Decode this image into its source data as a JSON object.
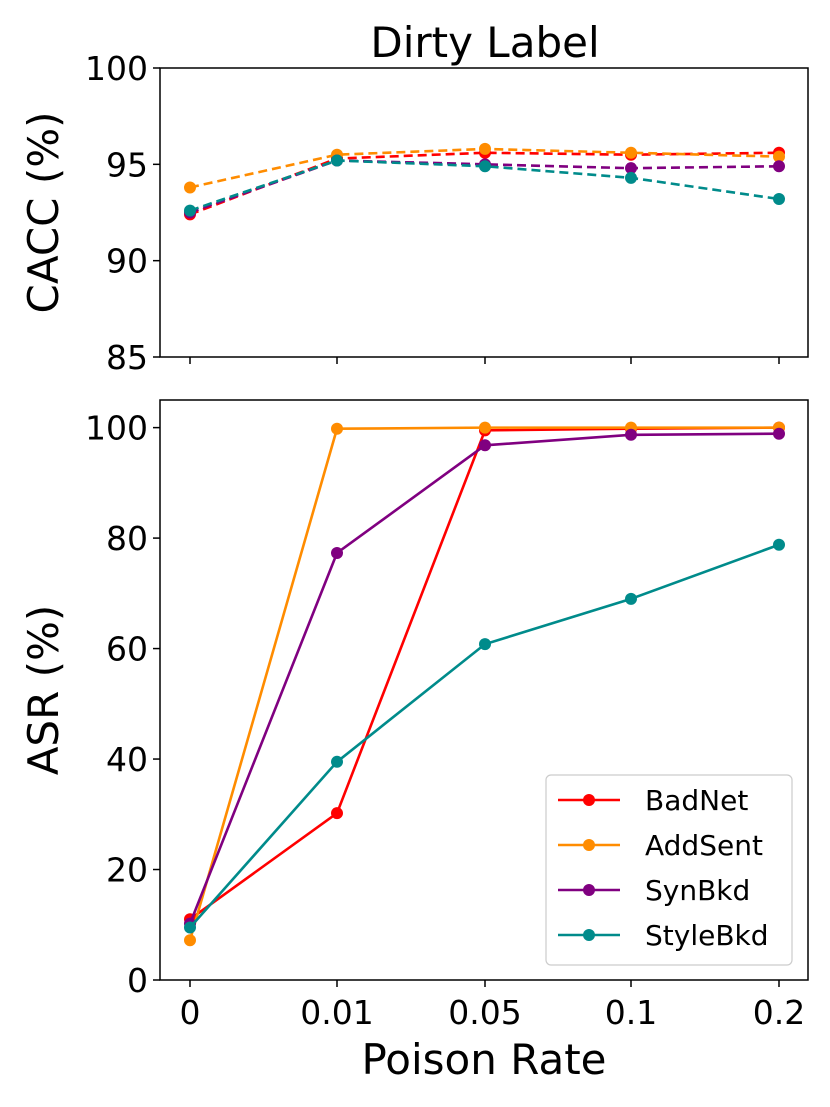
{
  "figure_title": "Dirty Label",
  "colors": {
    "BadNet": "#ff0000",
    "AddSent": "#ff8c00",
    "SynBkd": "#800080",
    "StyleBkd": "#008b8b"
  },
  "chart_data": [
    {
      "type": "line",
      "title": "Dirty Label",
      "xlabel": "",
      "ylabel": "CACC (%)",
      "categories": [
        "0",
        "0.01",
        "0.05",
        "0.1",
        "0.2"
      ],
      "ylim": [
        85,
        100
      ],
      "yticks": [
        "85",
        "90",
        "95",
        "100"
      ],
      "line_style": "dashed",
      "series": [
        {
          "name": "BadNet",
          "values": [
            92.4,
            95.3,
            95.6,
            95.5,
            95.6
          ]
        },
        {
          "name": "AddSent",
          "values": [
            93.8,
            95.5,
            95.8,
            95.6,
            95.4
          ]
        },
        {
          "name": "SynBkd",
          "values": [
            92.5,
            95.2,
            95.0,
            94.8,
            94.9
          ]
        },
        {
          "name": "StyleBkd",
          "values": [
            92.6,
            95.2,
            94.9,
            94.3,
            93.2
          ]
        }
      ]
    },
    {
      "type": "line",
      "title": "",
      "xlabel": "Poison Rate",
      "ylabel": "ASR (%)",
      "categories": [
        "0",
        "0.01",
        "0.05",
        "0.1",
        "0.2"
      ],
      "ylim": [
        0,
        105
      ],
      "yticks": [
        "0",
        "20",
        "40",
        "60",
        "80",
        "100"
      ],
      "line_style": "solid",
      "legend_position": "lower-right",
      "series": [
        {
          "name": "BadNet",
          "values": [
            11.0,
            30.2,
            99.5,
            99.8,
            100.0
          ]
        },
        {
          "name": "AddSent",
          "values": [
            7.2,
            99.8,
            100.0,
            100.0,
            100.0
          ]
        },
        {
          "name": "SynBkd",
          "values": [
            10.2,
            77.3,
            96.8,
            98.7,
            98.9
          ]
        },
        {
          "name": "StyleBkd",
          "values": [
            9.5,
            39.5,
            60.8,
            69.0,
            78.8
          ]
        }
      ]
    }
  ]
}
